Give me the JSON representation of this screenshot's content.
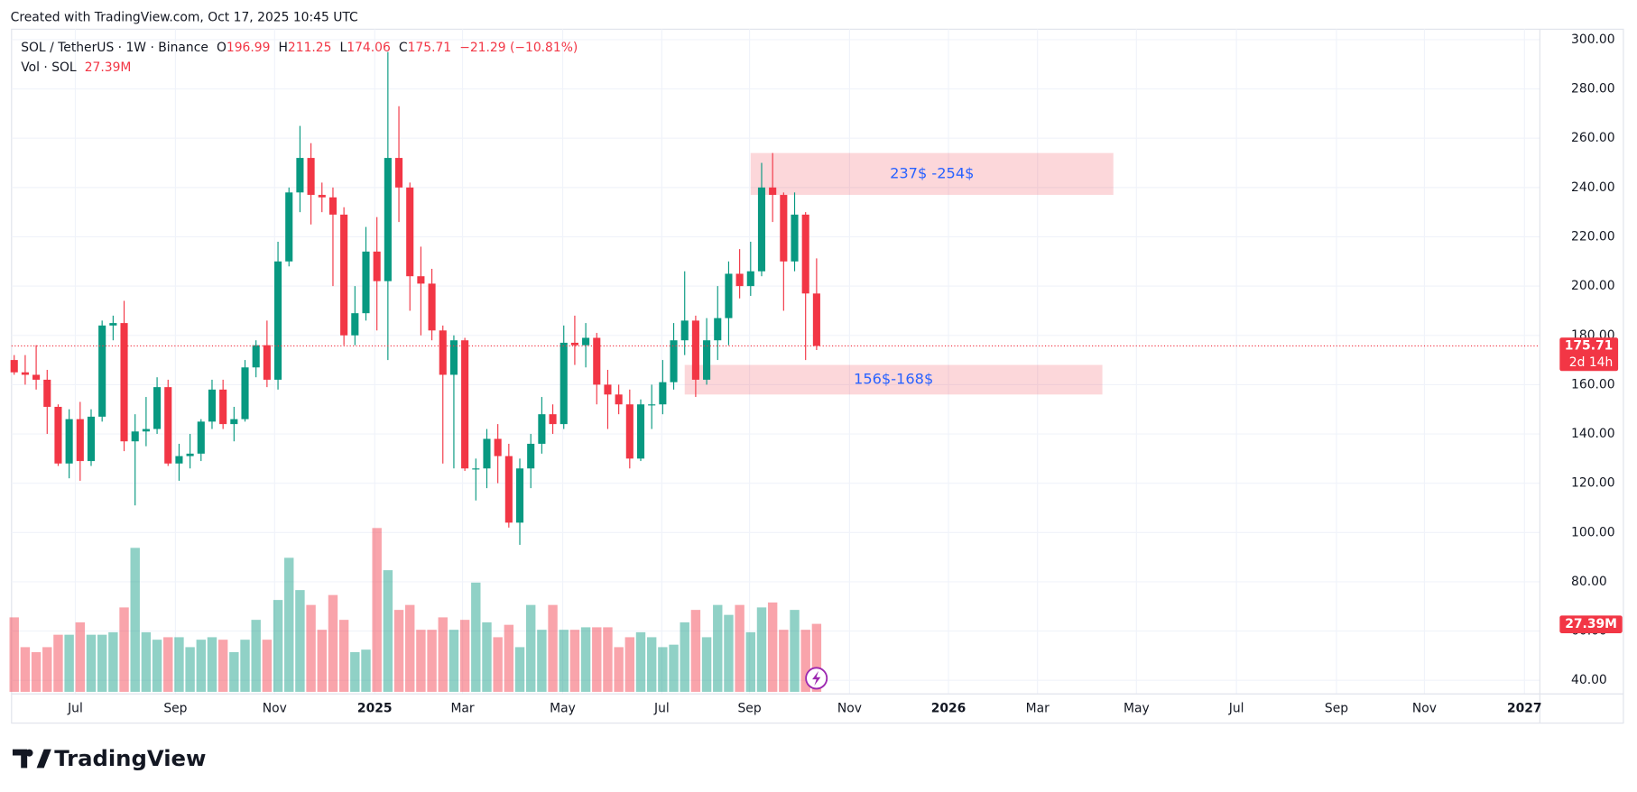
{
  "header": "Created with TradingView.com, Oct 17, 2025 10:45 UTC",
  "logo": "TradingView",
  "chart_data": {
    "type": "candlestick",
    "title": "SOL / TetherUS · 1W · Binance",
    "ohlc_labels": [
      "O",
      "H",
      "L",
      "C"
    ],
    "change_label": "−21.29 (−10.81%)",
    "countdown": "2d 14h",
    "up_color": "#089981",
    "down_color": "#f23645",
    "categories": [
      null,
      null,
      null,
      null,
      null,
      null,
      null,
      null,
      null,
      null,
      null,
      null,
      null,
      null,
      null,
      null,
      null,
      null,
      null,
      null,
      null,
      null,
      null,
      null,
      null,
      null,
      null,
      null,
      null,
      null,
      null,
      null,
      null,
      null,
      null,
      null,
      null,
      null,
      null,
      null,
      null,
      null,
      null,
      null,
      null,
      null,
      null,
      null,
      null,
      null,
      null,
      null,
      null,
      null,
      null,
      null,
      null,
      null,
      null,
      null,
      null,
      null,
      null,
      null,
      null,
      null,
      null,
      null,
      null,
      null,
      null,
      null,
      null,
      null
    ],
    "open": [
      170,
      165,
      164,
      162,
      151,
      128,
      146,
      129,
      147,
      184,
      185,
      137,
      141,
      142,
      159,
      128,
      131,
      132,
      145,
      158,
      144,
      146,
      167,
      176,
      162,
      210,
      238,
      252,
      237,
      236,
      229,
      180,
      189,
      214,
      202,
      252,
      240,
      204,
      201,
      182,
      164,
      178,
      126,
      126,
      138,
      131,
      104,
      126,
      136,
      148,
      144,
      177,
      176,
      179,
      160,
      156,
      152,
      130,
      152,
      152,
      161,
      178,
      186,
      162,
      178,
      187,
      205,
      200,
      206,
      240,
      237,
      210,
      229,
      196.99
    ],
    "high": [
      172,
      172,
      176,
      166,
      152,
      150,
      153,
      150,
      186,
      188,
      194,
      148,
      155,
      163,
      162,
      136,
      140,
      146,
      162,
      162,
      151,
      170,
      178,
      186,
      218,
      240,
      265,
      258,
      242,
      240,
      232,
      200,
      224,
      228,
      295,
      273,
      242,
      216,
      207,
      184,
      180,
      179,
      130,
      142,
      144,
      136,
      130,
      140,
      155,
      152,
      184,
      188,
      185,
      181,
      166,
      160,
      158,
      154,
      160,
      170,
      185,
      206,
      188,
      187,
      200,
      210,
      215,
      218,
      250,
      254,
      238,
      238,
      230,
      211.25
    ],
    "low": [
      164,
      160,
      158,
      140,
      127,
      122,
      121,
      127,
      145,
      178,
      133,
      111,
      135,
      140,
      127,
      121,
      126,
      129,
      142,
      142,
      137,
      145,
      163,
      159,
      158,
      208,
      230,
      225,
      230,
      200,
      176,
      176,
      186,
      182,
      170,
      226,
      190,
      180,
      178,
      128,
      126,
      125,
      113,
      118,
      120,
      102,
      95,
      118,
      132,
      140,
      142,
      168,
      167,
      152,
      142,
      148,
      126,
      129,
      142,
      148,
      158,
      172,
      155,
      160,
      170,
      176,
      195,
      196,
      204,
      226,
      190,
      206,
      170,
      174.06
    ],
    "close": [
      165,
      164,
      162,
      151,
      128,
      146,
      129,
      147,
      184,
      185,
      137,
      141,
      142,
      159,
      128,
      131,
      132,
      145,
      158,
      144,
      146,
      167,
      176,
      162,
      210,
      238,
      252,
      237,
      236,
      229,
      180,
      189,
      214,
      202,
      252,
      240,
      204,
      201,
      182,
      164,
      178,
      126,
      126,
      138,
      131,
      104,
      126,
      136,
      148,
      144,
      177,
      176,
      179,
      160,
      156,
      152,
      130,
      152,
      152,
      161,
      178,
      186,
      162,
      178,
      187,
      205,
      200,
      206,
      240,
      237,
      210,
      229,
      197,
      175.71
    ],
    "volume": {
      "name": "Vol · SOL",
      "last_label": "27.39M",
      "values": [
        30,
        18,
        16,
        18,
        23,
        23,
        28,
        23,
        23,
        24,
        34,
        58,
        24,
        21,
        22,
        22,
        18,
        21,
        22,
        21,
        16,
        21,
        29,
        21,
        37,
        54,
        41,
        35,
        25,
        39,
        29,
        16,
        17,
        66,
        49,
        33,
        35,
        25,
        25,
        30,
        25,
        29,
        44,
        28,
        22,
        27,
        18,
        35,
        25,
        35,
        25,
        25,
        26,
        26,
        26,
        18,
        22,
        24,
        22,
        18,
        19,
        28,
        33,
        22,
        35,
        31,
        35,
        24,
        34,
        36,
        25,
        33,
        25,
        27.39
      ]
    },
    "ylim": [
      40,
      300
    ],
    "yticks": [
      {
        "value": 40,
        "label": "40.00"
      },
      {
        "value": 60,
        "label": "60.00"
      },
      {
        "value": 80,
        "label": "80.00"
      },
      {
        "value": 100,
        "label": "100.00"
      },
      {
        "value": 120,
        "label": "120.00"
      },
      {
        "value": 140,
        "label": "140.00"
      },
      {
        "value": 160,
        "label": "160.00"
      },
      {
        "value": 180,
        "label": "180.00"
      },
      {
        "value": 200,
        "label": "200.00"
      },
      {
        "value": 220,
        "label": "220.00"
      },
      {
        "value": 240,
        "label": "240.00"
      },
      {
        "value": 260,
        "label": "260.00"
      },
      {
        "value": 280,
        "label": "280.00"
      },
      {
        "value": 300,
        "label": "300.00"
      }
    ],
    "xlim": [
      -0.24,
      138.8
    ],
    "xticks": [
      {
        "value": 5.56,
        "label": "Jul"
      },
      {
        "value": 14.67,
        "label": "Sep"
      },
      {
        "value": 23.69,
        "label": "Nov"
      },
      {
        "value": 32.8,
        "label": "2025"
      },
      {
        "value": 40.79,
        "label": "Mar"
      },
      {
        "value": 49.9,
        "label": "May"
      },
      {
        "value": 58.92,
        "label": "Jul"
      },
      {
        "value": 66.9,
        "label": "Sep"
      },
      {
        "value": 76.0,
        "label": "Nov"
      },
      {
        "value": 85.0,
        "label": "2026"
      },
      {
        "value": 93.1,
        "label": "Mar"
      },
      {
        "value": 102.1,
        "label": "May"
      },
      {
        "value": 111.2,
        "label": "Jul"
      },
      {
        "value": 120.3,
        "label": "Sep"
      },
      {
        "value": 128.3,
        "label": "Nov"
      },
      {
        "value": 137.4,
        "label": "2027"
      }
    ],
    "grid": true,
    "zones": [
      {
        "label": "237$ -254$",
        "y_range": [
          237,
          254
        ],
        "x_range": [
          67.0,
          100.0
        ]
      },
      {
        "label": "156$-168$",
        "y_range": [
          156,
          168
        ],
        "x_range": [
          61.0,
          99.0
        ]
      }
    ]
  }
}
